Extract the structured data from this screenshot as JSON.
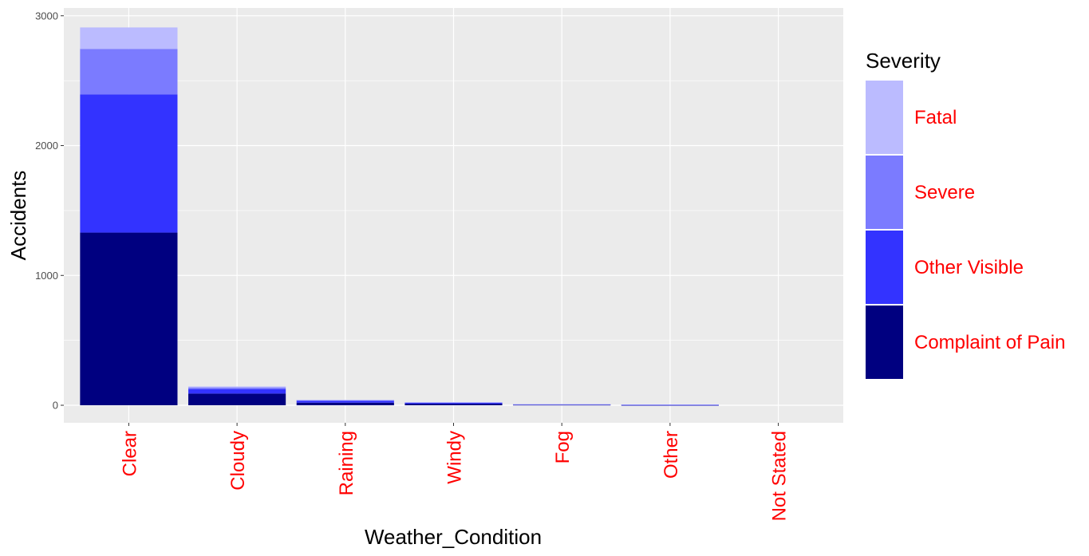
{
  "chart_data": {
    "type": "bar",
    "stacked": true,
    "categories": [
      "Clear",
      "Cloudy",
      "Raining",
      "Windy",
      "Fog",
      "Other",
      "Not Stated"
    ],
    "series": [
      {
        "name": "Complaint of Pain",
        "color": "#000080",
        "values": [
          1330,
          90,
          20,
          12,
          4,
          2,
          0
        ]
      },
      {
        "name": "Other Visible",
        "color": "#3333ff",
        "values": [
          1065,
          35,
          15,
          8,
          3,
          2,
          0
        ]
      },
      {
        "name": "Severe",
        "color": "#7b7bff",
        "values": [
          350,
          12,
          5,
          3,
          1,
          1,
          0
        ]
      },
      {
        "name": "Fatal",
        "color": "#bbbbff",
        "values": [
          165,
          8,
          2,
          1,
          1,
          0,
          0
        ]
      }
    ],
    "xlabel": "Weather_Condition",
    "ylabel": "Accidents",
    "ylim": [
      -135,
      3060
    ],
    "yticks": [
      0,
      1000,
      2000,
      3000
    ],
    "grid": true,
    "legend": {
      "title": "Severity",
      "position": "right",
      "items": [
        "Fatal",
        "Severe",
        "Other Visible",
        "Complaint of Pain"
      ]
    },
    "panel_background": "#ebebeb",
    "grid_color": "#ffffff"
  }
}
